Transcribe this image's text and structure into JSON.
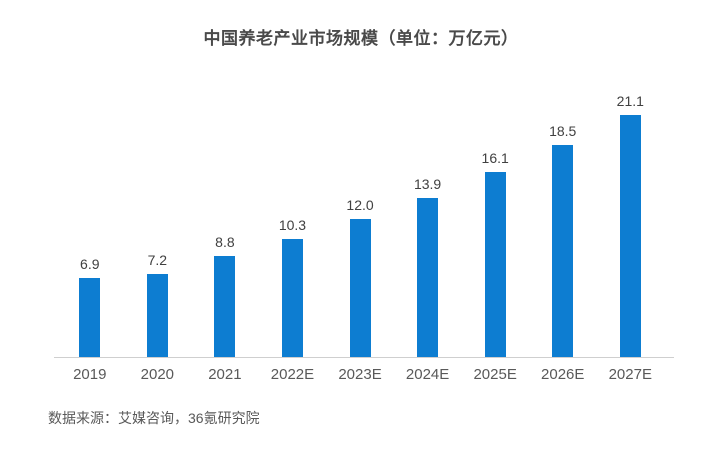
{
  "chart_data": {
    "type": "bar",
    "title": "中国养老产业市场规模（单位：万亿元）",
    "categories": [
      "2019",
      "2020",
      "2021",
      "2022E",
      "2023E",
      "2024E",
      "2025E",
      "2026E",
      "2027E"
    ],
    "values": [
      6.9,
      7.2,
      8.8,
      10.3,
      12.0,
      13.9,
      16.1,
      18.5,
      21.1
    ],
    "value_labels": [
      "6.9",
      "7.2",
      "8.8",
      "10.3",
      "12.0",
      "13.9",
      "16.1",
      "18.5",
      "21.1"
    ],
    "xlabel": "",
    "ylabel": "",
    "ylim": [
      0,
      22
    ],
    "grid": false,
    "legend": "none",
    "bar_color": "#0d7dd1",
    "axis_line_color": "#cfcfcf"
  },
  "source_note": "数据来源：艾媒咨询，36氪研究院"
}
